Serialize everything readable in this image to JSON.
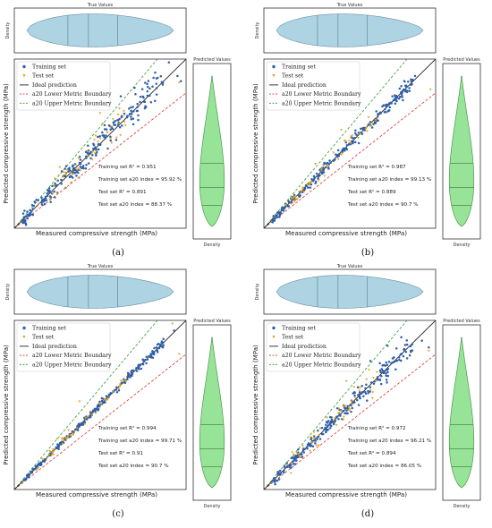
{
  "labels": {
    "violin_top_title": "True Values",
    "violin_top_ylabel": "Density",
    "violin_right_title": "Predicted Values",
    "violin_right_xlabel": "Density",
    "xlabel": "Measured compressive strength (MPa)",
    "ylabel": "Predicted compressive strength (MPa)"
  },
  "colors": {
    "training": "#2f5fa8",
    "test": "#e3a21a",
    "ideal": "#222222",
    "lower": "#d9352a",
    "upper": "#2e9a2e",
    "violin_top": "#aed3e2",
    "violin_right": "#97e397"
  },
  "legend": {
    "training": "Training set",
    "test": "Test set",
    "ideal": "Ideal prediction",
    "lower": "a20 Lower Metric Boundary",
    "upper": "a20 Upper Metric Boundary"
  },
  "chart_data": [
    {
      "type": "scatter",
      "panel_label": "(a)",
      "series": [
        {
          "name": "Training set",
          "role": "training"
        },
        {
          "name": "Test set",
          "role": "test"
        },
        {
          "name": "Ideal prediction",
          "role": "ideal",
          "slope": 1.0
        },
        {
          "name": "a20 Lower Metric Boundary",
          "role": "lower",
          "slope": 0.8
        },
        {
          "name": "a20 Upper Metric Boundary",
          "role": "upper",
          "slope": 1.2
        }
      ],
      "stats": {
        "train_r2": "Training set R² = 0.951",
        "train_a20": "Training set a20 index = 95.92 %",
        "test_r2": "Test set R² = 0.891",
        "test_a20": "Test set a20 index = 88.37 %"
      },
      "outliers": [
        [
          0.62,
          0.78
        ],
        [
          0.7,
          0.83
        ],
        [
          0.82,
          0.92
        ],
        [
          0.9,
          0.98
        ],
        [
          0.95,
          0.9
        ],
        [
          0.97,
          0.87
        ]
      ],
      "outliers_test": [
        [
          0.96,
          0.86
        ],
        [
          0.5,
          0.68
        ],
        [
          0.33,
          0.27
        ]
      ]
    },
    {
      "type": "scatter",
      "panel_label": "(b)",
      "series": [
        {
          "name": "Training set",
          "role": "training"
        },
        {
          "name": "Test set",
          "role": "test"
        },
        {
          "name": "Ideal prediction",
          "role": "ideal",
          "slope": 1.0
        },
        {
          "name": "a20 Lower Metric Boundary",
          "role": "lower",
          "slope": 0.8
        },
        {
          "name": "a20 Upper Metric Boundary",
          "role": "upper",
          "slope": 1.2
        }
      ],
      "stats": {
        "train_r2": "Training set R² = 0.987",
        "train_a20": "Training set a20 index = 99.13 %",
        "test_r2": "Test set R² = 0.889",
        "test_a20": "Test set a20 index = 90.7 %"
      },
      "outliers": [
        [
          0.8,
          0.84
        ],
        [
          0.88,
          0.9
        ]
      ],
      "outliers_test": [
        [
          0.97,
          0.82
        ],
        [
          0.45,
          0.58
        ],
        [
          0.3,
          0.38
        ]
      ]
    },
    {
      "type": "scatter",
      "panel_label": "(c)",
      "series": [
        {
          "name": "Training set",
          "role": "training"
        },
        {
          "name": "Test set",
          "role": "test"
        },
        {
          "name": "Ideal prediction",
          "role": "ideal",
          "slope": 1.0
        },
        {
          "name": "a20 Lower Metric Boundary",
          "role": "lower",
          "slope": 0.8
        },
        {
          "name": "a20 Upper Metric Boundary",
          "role": "upper",
          "slope": 1.2
        }
      ],
      "stats": {
        "train_r2": "Training set R² = 0.994",
        "train_a20": "Training set a20 index = 99.71 %",
        "test_r2": "Test set R² = 0.91",
        "test_a20": "Test set a20 index = 90.7 %"
      },
      "outliers": [
        [
          0.93,
          0.94
        ]
      ],
      "outliers_test": [
        [
          0.96,
          0.8
        ],
        [
          0.92,
          0.98
        ],
        [
          0.38,
          0.52
        ],
        [
          0.25,
          0.3
        ]
      ]
    },
    {
      "type": "scatter",
      "panel_label": "(d)",
      "series": [
        {
          "name": "Training set",
          "role": "training"
        },
        {
          "name": "Test set",
          "role": "test"
        },
        {
          "name": "Ideal prediction",
          "role": "ideal",
          "slope": 1.0
        },
        {
          "name": "a20 Lower Metric Boundary",
          "role": "lower",
          "slope": 0.8
        },
        {
          "name": "a20 Upper Metric Boundary",
          "role": "upper",
          "slope": 1.2
        }
      ],
      "stats": {
        "train_r2": "Training set R² = 0.972",
        "train_a20": "Training set a20 index = 96.21 %",
        "test_r2": "Test set R² = 0.894",
        "test_a20": "Test set a20 index = 86.05 %"
      },
      "outliers": [
        [
          0.62,
          0.76
        ],
        [
          0.72,
          0.85
        ],
        [
          0.8,
          0.9
        ],
        [
          0.92,
          0.88
        ],
        [
          0.96,
          0.84
        ]
      ],
      "outliers_test": [
        [
          0.96,
          0.82
        ],
        [
          0.48,
          0.64
        ],
        [
          0.32,
          0.26
        ]
      ]
    }
  ]
}
